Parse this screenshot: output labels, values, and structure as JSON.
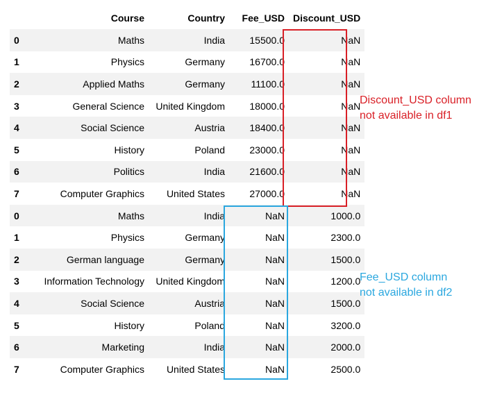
{
  "table": {
    "columns": [
      "",
      "Course",
      "Country",
      "Fee_USD",
      "Discount_USD"
    ],
    "rows": [
      [
        "0",
        "Maths",
        "India",
        "15500.0",
        "NaN"
      ],
      [
        "1",
        "Physics",
        "Germany",
        "16700.0",
        "NaN"
      ],
      [
        "2",
        "Applied Maths",
        "Germany",
        "11100.0",
        "NaN"
      ],
      [
        "3",
        "General Science",
        "United Kingdom",
        "18000.0",
        "NaN"
      ],
      [
        "4",
        "Social Science",
        "Austria",
        "18400.0",
        "NaN"
      ],
      [
        "5",
        "History",
        "Poland",
        "23000.0",
        "NaN"
      ],
      [
        "6",
        "Politics",
        "India",
        "21600.0",
        "NaN"
      ],
      [
        "7",
        "Computer Graphics",
        "United States",
        "27000.0",
        "NaN"
      ],
      [
        "0",
        "Maths",
        "India",
        "NaN",
        "1000.0"
      ],
      [
        "1",
        "Physics",
        "Germany",
        "NaN",
        "2300.0"
      ],
      [
        "2",
        "German language",
        "Germany",
        "NaN",
        "1500.0"
      ],
      [
        "3",
        "Information Technology",
        "United Kingdom",
        "NaN",
        "1200.0"
      ],
      [
        "4",
        "Social Science",
        "Austria",
        "NaN",
        "1500.0"
      ],
      [
        "5",
        "History",
        "Poland",
        "NaN",
        "3200.0"
      ],
      [
        "6",
        "Marketing",
        "India",
        "NaN",
        "2000.0"
      ],
      [
        "7",
        "Computer Graphics",
        "United States",
        "NaN",
        "2500.0"
      ]
    ]
  },
  "annotations": {
    "discount_note": [
      "Discount_USD column",
      "not available in df1"
    ],
    "fee_note": [
      "Fee_USD column",
      "not available in df2"
    ],
    "red_color": "#d91f26",
    "blue_color": "#2aa7df"
  }
}
